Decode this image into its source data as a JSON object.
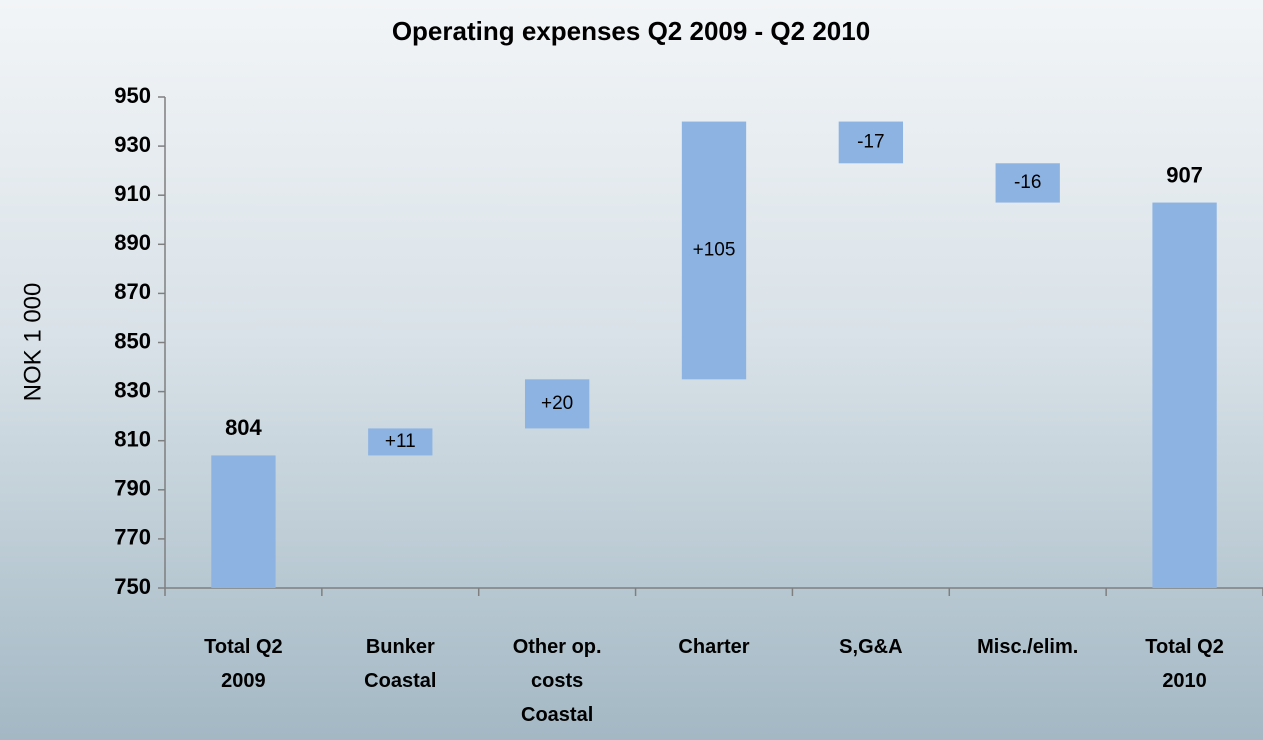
{
  "chart_data": {
    "type": "waterfall",
    "title": "Operating expenses Q2 2009 - Q2 2010",
    "y_label": "NOK 1 000",
    "categories": [
      "Total Q2 2009",
      "Bunker Coastal",
      "Other op. costs Coastal",
      "Charter",
      "S,G&A",
      "Misc./elim.",
      "Total Q2 2010"
    ],
    "values": [
      804,
      11,
      20,
      105,
      -17,
      -16,
      907
    ],
    "value_labels": [
      "804",
      "+11",
      "+20",
      "+105",
      "-17",
      "-16",
      "907"
    ],
    "measure": [
      "absolute",
      "relative",
      "relative",
      "relative",
      "relative",
      "relative",
      "absolute"
    ],
    "color": "#8db3e2",
    "ylim": [
      750,
      950
    ],
    "yticks": [
      750,
      770,
      790,
      810,
      830,
      850,
      870,
      890,
      910,
      930,
      950
    ]
  }
}
